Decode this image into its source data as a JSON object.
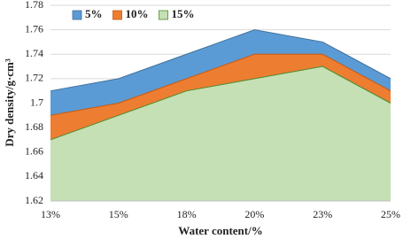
{
  "chart_data": {
    "type": "area",
    "x_label": "Water content/%",
    "y_label": "Dry density/g·cm³",
    "categories": [
      "13%",
      "15%",
      "18%",
      "20%",
      "23%",
      "25%"
    ],
    "series": [
      {
        "name": "5%",
        "color": "#5b9bd5",
        "edge_color": "#41719c",
        "values": [
          1.71,
          1.72,
          1.74,
          1.76,
          1.75,
          1.72
        ]
      },
      {
        "name": "10%",
        "color": "#ed7d31",
        "edge_color": "#c55a11",
        "values": [
          1.69,
          1.7,
          1.72,
          1.74,
          1.74,
          1.71
        ]
      },
      {
        "name": "15%",
        "color": "#c5e0b4",
        "edge_color": "#4e8a2e",
        "values": [
          1.67,
          1.69,
          1.71,
          1.72,
          1.73,
          1.7
        ]
      }
    ],
    "ylim": [
      1.62,
      1.78
    ],
    "yticks": [
      1.62,
      1.64,
      1.66,
      1.68,
      1.7,
      1.72,
      1.74,
      1.76,
      1.78
    ],
    "grid": true,
    "legend": "top-left"
  }
}
